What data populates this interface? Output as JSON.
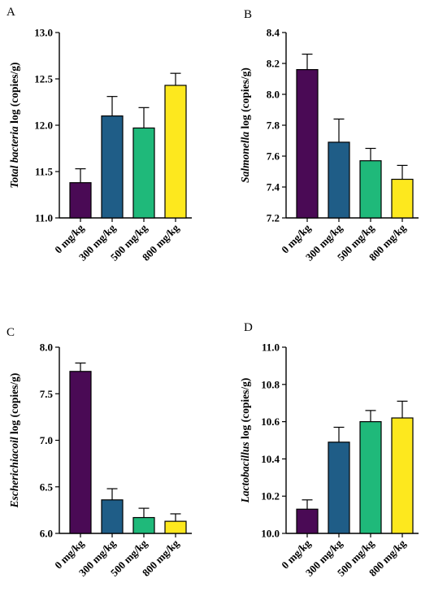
{
  "chart_data": [
    {
      "panel": "A",
      "type": "bar",
      "categories": [
        "0 mg/kg",
        "300 mg/kg",
        "500 mg/kg",
        "800 mg/kg"
      ],
      "values": [
        11.38,
        12.1,
        11.97,
        12.43
      ],
      "errors": [
        0.15,
        0.21,
        0.22,
        0.13
      ],
      "ylabel_italic": "Total bacteria",
      "ylabel_rest": " log (copies/g)",
      "ylim": [
        11.0,
        13.0
      ],
      "yticks": [
        "11.0",
        "11.5",
        "12.0",
        "12.5",
        "13.0"
      ],
      "colors": [
        "#4a0a55",
        "#1f5d87",
        "#1fb97a",
        "#fde81e"
      ]
    },
    {
      "panel": "B",
      "type": "bar",
      "categories": [
        "0 mg/kg",
        "300 mg/kg",
        "500 mg/kg",
        "800 mg/kg"
      ],
      "values": [
        8.16,
        7.69,
        7.57,
        7.45
      ],
      "errors": [
        0.1,
        0.15,
        0.08,
        0.09
      ],
      "ylabel_italic": "Salmonella",
      "ylabel_rest": " log (copies/g)",
      "ylim": [
        7.2,
        8.4
      ],
      "yticks": [
        "7.2",
        "7.4",
        "7.6",
        "7.8",
        "8.0",
        "8.2",
        "8.4"
      ],
      "colors": [
        "#4a0a55",
        "#1f5d87",
        "#1fb97a",
        "#fde81e"
      ]
    },
    {
      "panel": "C",
      "type": "bar",
      "categories": [
        "0 mg/kg",
        "300 mg/kg",
        "500 mg/kg",
        "800 mg/kg"
      ],
      "values": [
        7.74,
        6.36,
        6.17,
        6.13
      ],
      "errors": [
        0.09,
        0.12,
        0.1,
        0.08
      ],
      "ylabel_italic": "Escherichiacoil",
      "ylabel_rest": " log (copies/g)",
      "ylim": [
        6.0,
        8.0
      ],
      "yticks": [
        "6.0",
        "6.5",
        "7.0",
        "7.5",
        "8.0"
      ],
      "colors": [
        "#4a0a55",
        "#1f5d87",
        "#1fb97a",
        "#fde81e"
      ]
    },
    {
      "panel": "D",
      "type": "bar",
      "categories": [
        "0 mg/kg",
        "300 mg/kg",
        "500 mg/kg",
        "800 mg/kg"
      ],
      "values": [
        10.13,
        10.49,
        10.6,
        10.62
      ],
      "errors": [
        0.05,
        0.08,
        0.06,
        0.09
      ],
      "ylabel_italic": "Lactobacillus",
      "ylabel_rest": " log (copies/g)",
      "ylim": [
        10.0,
        11.0
      ],
      "yticks": [
        "10.0",
        "10.2",
        "10.4",
        "10.6",
        "10.8",
        "11.0"
      ],
      "colors": [
        "#4a0a55",
        "#1f5d87",
        "#1fb97a",
        "#fde81e"
      ]
    }
  ]
}
